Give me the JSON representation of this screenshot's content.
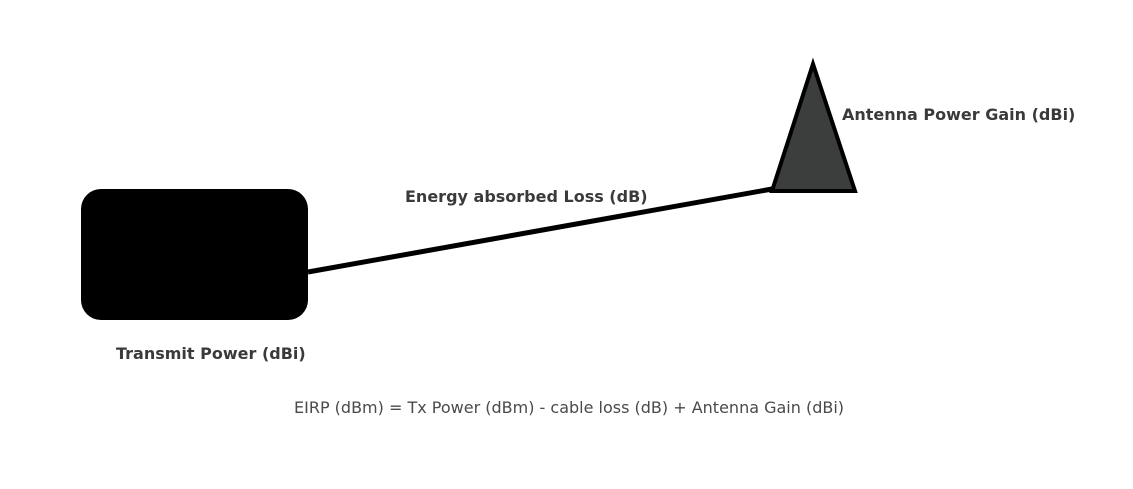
{
  "diagram": {
    "transmitter_label": "Transmit Power (dBi)",
    "cable_label": "Energy absorbed Loss (dB)",
    "antenna_label": "Antenna Power Gain (dBi)",
    "formula": "EIRP (dBm) = Tx Power (dBm) - cable loss (dB) + Antenna Gain (dBi)"
  },
  "colors": {
    "transmitter_fill": "#000000",
    "antenna_fill": "#3b3e3d",
    "line": "#000000",
    "label_text": "#3a3a3a",
    "formula_text": "#4a4a4a",
    "background": "#ffffff"
  }
}
